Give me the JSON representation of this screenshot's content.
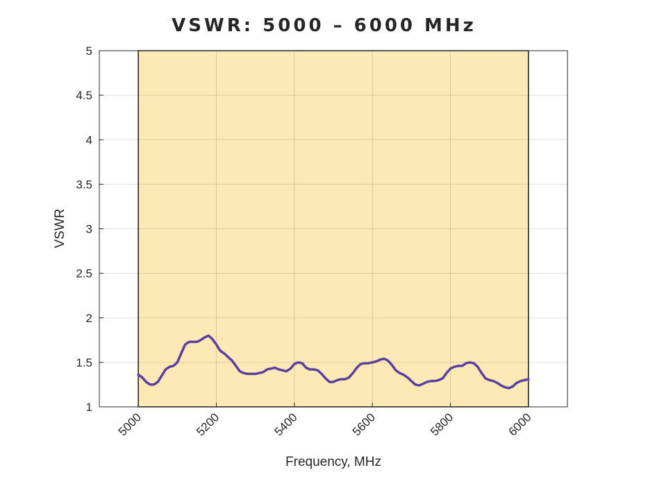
{
  "chart_data": {
    "type": "line",
    "title": "VSWR: 5000 – 6000 MHz",
    "xlabel": "Frequency, MHz",
    "ylabel": "VSWR",
    "xlim": [
      4900,
      6100
    ],
    "ylim": [
      1,
      5
    ],
    "grid": true,
    "x_ticks": [
      5000,
      5200,
      5400,
      5600,
      5800,
      6000
    ],
    "y_ticks": [
      1,
      1.5,
      2,
      2.5,
      3,
      3.5,
      4,
      4.5,
      5
    ],
    "x_tick_labels": [
      "5000",
      "5200",
      "5400",
      "5600",
      "5800",
      "6000"
    ],
    "y_tick_labels": [
      "1",
      "1.5",
      "2",
      "2.5",
      "3",
      "3.5",
      "4",
      "4.5",
      "5"
    ],
    "band": {
      "x_start": 5000,
      "x_end": 6000,
      "color": "#fde9b5"
    },
    "series": [
      {
        "name": "VSWR",
        "color": "#5b3fa0",
        "x": [
          5000,
          5010,
          5020,
          5030,
          5040,
          5050,
          5060,
          5070,
          5080,
          5090,
          5100,
          5110,
          5120,
          5130,
          5140,
          5150,
          5160,
          5170,
          5180,
          5190,
          5200,
          5210,
          5220,
          5230,
          5240,
          5250,
          5260,
          5270,
          5280,
          5290,
          5300,
          5310,
          5320,
          5330,
          5340,
          5350,
          5360,
          5370,
          5380,
          5390,
          5400,
          5410,
          5420,
          5430,
          5440,
          5450,
          5460,
          5470,
          5480,
          5490,
          5500,
          5510,
          5520,
          5530,
          5540,
          5550,
          5560,
          5570,
          5580,
          5590,
          5600,
          5610,
          5620,
          5630,
          5640,
          5650,
          5660,
          5670,
          5680,
          5690,
          5700,
          5710,
          5720,
          5730,
          5740,
          5750,
          5760,
          5770,
          5780,
          5790,
          5800,
          5810,
          5820,
          5830,
          5840,
          5850,
          5860,
          5870,
          5880,
          5890,
          5900,
          5910,
          5920,
          5930,
          5940,
          5950,
          5960,
          5970,
          5980,
          5990,
          6000
        ],
        "values": [
          1.36,
          1.33,
          1.28,
          1.25,
          1.25,
          1.28,
          1.35,
          1.42,
          1.45,
          1.46,
          1.5,
          1.6,
          1.7,
          1.73,
          1.73,
          1.73,
          1.75,
          1.78,
          1.8,
          1.76,
          1.7,
          1.63,
          1.6,
          1.56,
          1.52,
          1.46,
          1.4,
          1.38,
          1.37,
          1.37,
          1.37,
          1.38,
          1.39,
          1.42,
          1.43,
          1.44,
          1.42,
          1.41,
          1.4,
          1.43,
          1.48,
          1.5,
          1.49,
          1.44,
          1.42,
          1.42,
          1.41,
          1.37,
          1.32,
          1.28,
          1.28,
          1.3,
          1.31,
          1.31,
          1.33,
          1.38,
          1.44,
          1.48,
          1.49,
          1.49,
          1.5,
          1.51,
          1.53,
          1.54,
          1.52,
          1.47,
          1.41,
          1.38,
          1.36,
          1.33,
          1.29,
          1.25,
          1.24,
          1.26,
          1.28,
          1.29,
          1.29,
          1.3,
          1.32,
          1.38,
          1.43,
          1.45,
          1.46,
          1.46,
          1.49,
          1.5,
          1.49,
          1.45,
          1.38,
          1.32,
          1.3,
          1.29,
          1.27,
          1.24,
          1.22,
          1.21,
          1.23,
          1.27,
          1.29,
          1.3,
          1.31
        ]
      }
    ]
  }
}
